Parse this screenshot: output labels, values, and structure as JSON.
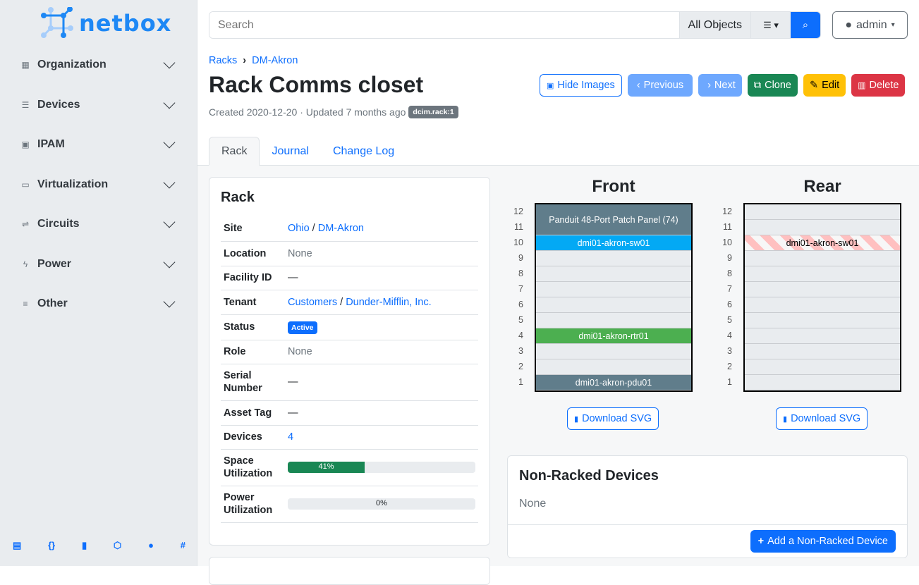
{
  "brand": {
    "name": "netbox",
    "color": "#1e88f5"
  },
  "sidebar": {
    "items": [
      {
        "label": "Organization",
        "icon": "building-icon"
      },
      {
        "label": "Devices",
        "icon": "server-icon"
      },
      {
        "label": "IPAM",
        "icon": "ip-icon"
      },
      {
        "label": "Virtualization",
        "icon": "monitor-icon"
      },
      {
        "label": "Circuits",
        "icon": "circuit-icon"
      },
      {
        "label": "Power",
        "icon": "lightning-icon"
      },
      {
        "label": "Other",
        "icon": "list-icon"
      }
    ],
    "footer": [
      "docs-icon",
      "api-icon",
      "book-icon",
      "graphql-icon",
      "github-icon",
      "slack-icon"
    ]
  },
  "search": {
    "placeholder": "Search",
    "object_type": "All Objects"
  },
  "user": {
    "name": "admin"
  },
  "breadcrumb": [
    "Racks",
    "DM-Akron"
  ],
  "page": {
    "title": "Rack Comms closet",
    "meta": "Created 2020-12-20 · Updated 7 months ago",
    "tag": "dcim.rack:1"
  },
  "actions": {
    "hide_images": "Hide Images",
    "previous": "Previous",
    "next": "Next",
    "clone": "Clone",
    "edit": "Edit",
    "delete": "Delete"
  },
  "tabs": [
    "Rack",
    "Journal",
    "Change Log"
  ],
  "rack_card": {
    "title": "Rack",
    "rows": {
      "site": {
        "label": "Site",
        "v1": "Ohio",
        "v2": "DM-Akron"
      },
      "location": {
        "label": "Location",
        "value": "None"
      },
      "facility": {
        "label": "Facility ID",
        "value": "—"
      },
      "tenant": {
        "label": "Tenant",
        "v1": "Customers",
        "v2": "Dunder-Mifflin, Inc."
      },
      "status": {
        "label": "Status",
        "value": "Active"
      },
      "role": {
        "label": "Role",
        "value": "None"
      },
      "serial": {
        "label": "Serial Number",
        "value": "—"
      },
      "asset": {
        "label": "Asset Tag",
        "value": "—"
      },
      "devices": {
        "label": "Devices",
        "value": "4"
      },
      "space": {
        "label": "Space Utilization",
        "value": "41%",
        "percent": 41
      },
      "power": {
        "label": "Power Utilization",
        "value": "0%",
        "percent": 0
      }
    }
  },
  "elevation": {
    "front_title": "Front",
    "rear_title": "Rear",
    "download": "Download SVG",
    "units": [
      12,
      11,
      10,
      9,
      8,
      7,
      6,
      5,
      4,
      3,
      2,
      1
    ],
    "front_devices": [
      {
        "name": "Panduit 48-Port Patch Panel (74)",
        "top": 12,
        "height": 2,
        "color": "#607d8b"
      },
      {
        "name": "dmi01-akron-sw01",
        "top": 10,
        "height": 1,
        "color": "#03a9f4"
      },
      {
        "name": "dmi01-akron-rtr01",
        "top": 4,
        "height": 1,
        "color": "#4caf50"
      },
      {
        "name": "dmi01-akron-pdu01",
        "top": 1,
        "height": 1,
        "color": "#607d8b"
      }
    ],
    "rear_devices": [
      {
        "name": "dmi01-akron-sw01",
        "top": 10,
        "height": 1
      }
    ]
  },
  "non_racked": {
    "title": "Non-Racked Devices",
    "value": "None",
    "add": "Add a Non-Racked Device"
  }
}
